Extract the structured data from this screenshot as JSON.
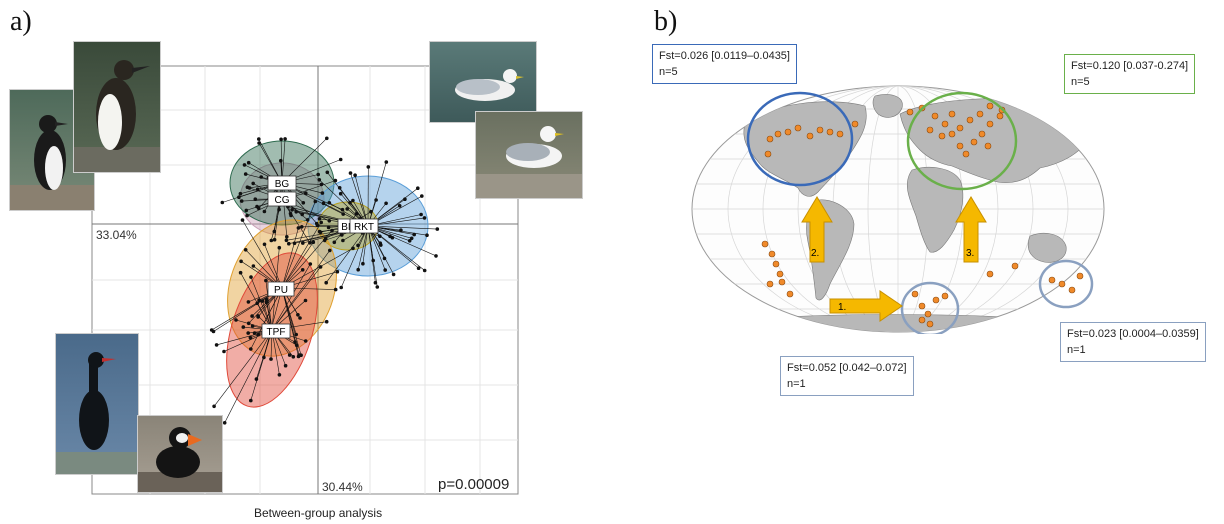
{
  "panel_a": {
    "label": "a)",
    "axis1_pct": "33.04%",
    "axis2_pct": "30.44%",
    "p_value": "p=0.00009",
    "caption": "Between-group analysis",
    "groups": [
      {
        "code": "BG",
        "color": "#2e6b4f"
      },
      {
        "code": "CG",
        "color": "#c9a0b8"
      },
      {
        "code": "BI",
        "color": "#b8a020"
      },
      {
        "code": "RKT",
        "color": "#5a9ed8"
      },
      {
        "code": "PU",
        "color": "#e0a030"
      },
      {
        "code": "TPF",
        "color": "#e04a3a"
      }
    ]
  },
  "panel_b": {
    "label": "b)",
    "fst_boxes": [
      {
        "line1": "Fst=0.026 [0.0119–0.0435]",
        "line2": "n=5",
        "color": "#3a6ab8"
      },
      {
        "line1": "Fst=0.120 [0.037-0.274]",
        "line2": "n=5",
        "color": "#6ab04a"
      },
      {
        "line1": "Fst=0.052 [0.042–0.072]",
        "line2": "n=1",
        "color": "#8aa0c0"
      },
      {
        "line1": "Fst=0.023 [0.0004–0.0359]",
        "line2": "n=1",
        "color": "#8aa0c0"
      }
    ],
    "arrows": [
      "1.",
      "2.",
      "3."
    ],
    "colors": {
      "land": "#b8b8b8",
      "sea": "#ffffff",
      "site": "#f08a2a",
      "arrow": "#f5b800"
    }
  }
}
